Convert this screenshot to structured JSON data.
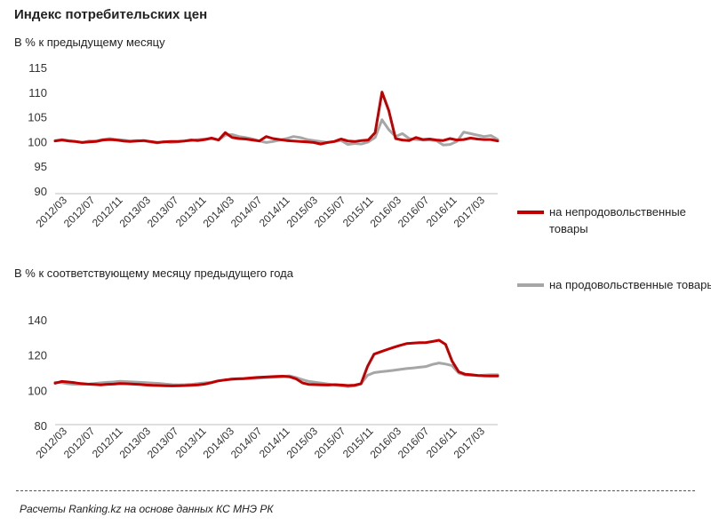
{
  "title": "Индекс потребительских цен",
  "footer": "Расчеты Ranking.kz на основе данных КС МНЭ РК",
  "legend": [
    {
      "name": "на непродовольственные товары",
      "color": "#c00000"
    },
    {
      "name": "на продовольственные товары",
      "color": "#a6a6a6"
    }
  ],
  "chart_data": [
    {
      "type": "line",
      "subtitle": "В % к предыдущему месяцу",
      "xlabel": "",
      "ylabel": "",
      "ylim": [
        90,
        115
      ],
      "yticks": [
        90,
        95,
        100,
        105,
        110,
        115
      ],
      "grid": false,
      "xtick_labels": [
        "2012/03",
        "2012/07",
        "2012/11",
        "2013/03",
        "2013/07",
        "2013/11",
        "2014/03",
        "2014/07",
        "2014/11",
        "2015/03",
        "2015/07",
        "2015/11",
        "2016/03",
        "2016/07",
        "2016/11",
        "2017/03"
      ],
      "series": [
        {
          "name": "на непродовольственные товары",
          "color": "#c00000",
          "values": [
            100.3,
            100.5,
            100.3,
            100.2,
            100.0,
            100.1,
            100.2,
            100.5,
            100.6,
            100.5,
            100.3,
            100.2,
            100.3,
            100.4,
            100.2,
            100.0,
            100.1,
            100.2,
            100.2,
            100.3,
            100.5,
            100.4,
            100.6,
            100.9,
            100.5,
            102.0,
            101.0,
            100.8,
            100.7,
            100.5,
            100.3,
            101.2,
            100.8,
            100.6,
            100.4,
            100.3,
            100.2,
            100.1,
            100.0,
            99.7,
            100.0,
            100.2,
            100.7,
            100.3,
            100.2,
            100.4,
            100.5,
            102.0,
            110.2,
            106.5,
            100.8,
            100.5,
            100.4,
            101.0,
            100.6,
            100.7,
            100.5,
            100.4,
            100.8,
            100.5,
            100.6,
            100.9,
            100.7,
            100.6,
            100.6,
            100.3
          ]
        },
        {
          "name": "на продовольственные товары",
          "color": "#a6a6a6",
          "values": [
            100.4,
            100.6,
            100.4,
            100.2,
            100.0,
            100.3,
            100.3,
            100.6,
            100.8,
            100.6,
            100.5,
            100.3,
            100.4,
            100.3,
            100.1,
            99.9,
            100.2,
            100.0,
            100.1,
            100.3,
            100.4,
            100.6,
            100.7,
            100.8,
            100.5,
            101.5,
            101.6,
            101.2,
            101.0,
            100.7,
            100.3,
            100.0,
            100.2,
            100.5,
            100.8,
            101.2,
            101.0,
            100.6,
            100.4,
            100.2,
            100.0,
            100.2,
            100.4,
            99.6,
            99.8,
            99.7,
            100.1,
            101.0,
            104.6,
            102.6,
            101.2,
            101.8,
            100.8,
            100.6,
            100.5,
            100.5,
            100.4,
            99.5,
            99.6,
            100.2,
            102.1,
            101.8,
            101.5,
            101.2,
            101.4,
            100.6
          ]
        }
      ]
    },
    {
      "type": "line",
      "subtitle": "В % к соответствующему месяцу предыдущего года",
      "xlabel": "",
      "ylabel": "",
      "ylim": [
        80,
        140
      ],
      "yticks": [
        80,
        100,
        120,
        140
      ],
      "grid": false,
      "xtick_labels": [
        "2012/03",
        "2012/07",
        "2012/11",
        "2013/03",
        "2013/07",
        "2013/11",
        "2014/03",
        "2014/07",
        "2014/11",
        "2015/03",
        "2015/07",
        "2015/11",
        "2016/03",
        "2016/07",
        "2016/11",
        "2017/03"
      ],
      "series": [
        {
          "name": "на непродовольственные товары",
          "color": "#c00000",
          "values": [
            104.5,
            105.5,
            105.2,
            104.8,
            104.3,
            104.0,
            103.8,
            103.6,
            103.9,
            104.0,
            104.3,
            104.2,
            104.0,
            103.8,
            103.5,
            103.3,
            103.2,
            103.1,
            103.0,
            103.1,
            103.2,
            103.4,
            103.6,
            104.0,
            104.8,
            105.8,
            106.3,
            106.8,
            107.0,
            107.2,
            107.5,
            107.8,
            108.0,
            108.2,
            108.4,
            108.5,
            108.2,
            107.0,
            104.7,
            103.8,
            103.7,
            103.6,
            103.5,
            103.7,
            103.5,
            103.2,
            103.4,
            104.2,
            114.0,
            121.0,
            122.3,
            123.6,
            124.8,
            126.0,
            127.0,
            127.3,
            127.5,
            127.6,
            128.2,
            128.9,
            126.5,
            117.0,
            111.0,
            109.6,
            109.3,
            108.9,
            108.7,
            108.6,
            108.6
          ]
        },
        {
          "name": "на продовольственные товары",
          "color": "#a6a6a6",
          "values": [
            105.0,
            104.8,
            104.2,
            103.9,
            103.8,
            104.0,
            104.3,
            104.7,
            105.0,
            105.2,
            105.6,
            105.4,
            105.2,
            105.0,
            104.8,
            104.6,
            104.4,
            104.0,
            103.7,
            103.6,
            103.7,
            103.9,
            104.3,
            104.7,
            105.0,
            105.8,
            106.3,
            106.6,
            106.8,
            107.0,
            107.2,
            107.4,
            107.6,
            107.8,
            108.0,
            108.3,
            108.7,
            107.8,
            106.5,
            105.5,
            105.0,
            104.5,
            104.0,
            103.5,
            103.0,
            102.6,
            103.0,
            104.2,
            109.0,
            110.5,
            111.0,
            111.4,
            111.8,
            112.3,
            112.8,
            113.2,
            113.6,
            114.0,
            115.2,
            116.0,
            115.4,
            114.5,
            110.3,
            109.2,
            109.0,
            108.9,
            109.1,
            109.3,
            109.3
          ]
        }
      ]
    }
  ]
}
